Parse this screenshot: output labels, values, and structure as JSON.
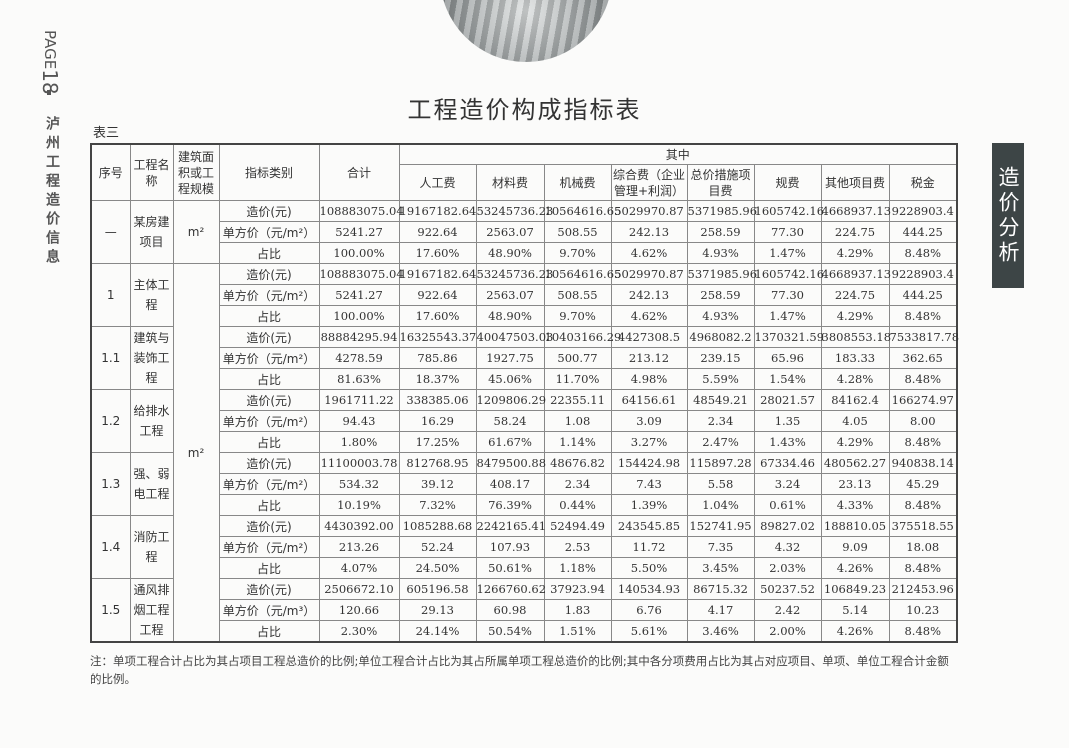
{
  "page_label": "PAGE",
  "page_number": "18",
  "magazine": "泸州工程造价信息",
  "section_tab": "造价分析",
  "title": "工程造价构成指标表",
  "table_label": "表三",
  "headers": {
    "seq": "序号",
    "name": "工程名称",
    "area": "建筑面积或工程规模",
    "kind": "指标类别",
    "total": "合计",
    "group": "其中",
    "sub": [
      "人工费",
      "材料费",
      "机械费",
      "综合费（企业管理+利润）",
      "总价措施项目费",
      "规费",
      "其他项目费",
      "税金"
    ]
  },
  "groups": [
    {
      "seq": "—",
      "name": "某房建项目",
      "area": "m²",
      "rows": [
        {
          "kind": "造价(元)",
          "values": [
            "108883075.04",
            "19167182.64",
            "53245736.23",
            "10564616.65",
            "5029970.87",
            "5371985.96",
            "1605742.16",
            "4668937.13",
            "9228903.4"
          ]
        },
        {
          "kind": "单方价（元/m²）",
          "values": [
            "5241.27",
            "922.64",
            "2563.07",
            "508.55",
            "242.13",
            "258.59",
            "77.30",
            "224.75",
            "444.25"
          ]
        },
        {
          "kind": "占比",
          "values": [
            "100.00%",
            "17.60%",
            "48.90%",
            "9.70%",
            "4.62%",
            "4.93%",
            "1.47%",
            "4.29%",
            "8.48%"
          ]
        }
      ]
    },
    {
      "seq": "1",
      "name": "主体工程",
      "rows": [
        {
          "kind": "造价(元)",
          "values": [
            "108883075.04",
            "19167182.64",
            "53245736.23",
            "10564616.65",
            "5029970.87",
            "5371985.96",
            "1605742.16",
            "4668937.13",
            "9228903.4"
          ]
        },
        {
          "kind": "单方价（元/m²）",
          "values": [
            "5241.27",
            "922.64",
            "2563.07",
            "508.55",
            "242.13",
            "258.59",
            "77.30",
            "224.75",
            "444.25"
          ]
        },
        {
          "kind": "占比",
          "values": [
            "100.00%",
            "17.60%",
            "48.90%",
            "9.70%",
            "4.62%",
            "4.93%",
            "1.47%",
            "4.29%",
            "8.48%"
          ]
        }
      ]
    },
    {
      "seq": "1.1",
      "name": "建筑与装饰工程",
      "rows": [
        {
          "kind": "造价(元)",
          "values": [
            "88884295.94",
            "16325543.37",
            "40047503.03",
            "10403166.29",
            "4427308.5",
            "4968082.2",
            "1370321.59",
            "3808553.18",
            "7533817.78"
          ]
        },
        {
          "kind": "单方价（元/m²）",
          "values": [
            "4278.59",
            "785.86",
            "1927.75",
            "500.77",
            "213.12",
            "239.15",
            "65.96",
            "183.33",
            "362.65"
          ]
        },
        {
          "kind": "占比",
          "values": [
            "81.63%",
            "18.37%",
            "45.06%",
            "11.70%",
            "4.98%",
            "5.59%",
            "1.54%",
            "4.28%",
            "8.48%"
          ]
        }
      ]
    },
    {
      "seq": "1.2",
      "name": "给排水工程",
      "rows": [
        {
          "kind": "造价(元)",
          "values": [
            "1961711.22",
            "338385.06",
            "1209806.29",
            "22355.11",
            "64156.61",
            "48549.21",
            "28021.57",
            "84162.4",
            "166274.97"
          ]
        },
        {
          "kind": "单方价（元/m²）",
          "values": [
            "94.43",
            "16.29",
            "58.24",
            "1.08",
            "3.09",
            "2.34",
            "1.35",
            "4.05",
            "8.00"
          ]
        },
        {
          "kind": "占比",
          "values": [
            "1.80%",
            "17.25%",
            "61.67%",
            "1.14%",
            "3.27%",
            "2.47%",
            "1.43%",
            "4.29%",
            "8.48%"
          ]
        }
      ]
    },
    {
      "seq": "1.3",
      "name": "强、弱电工程",
      "rows": [
        {
          "kind": "造价(元)",
          "values": [
            "11100003.78",
            "812768.95",
            "8479500.88",
            "48676.82",
            "154424.98",
            "115897.28",
            "67334.46",
            "480562.27",
            "940838.14"
          ]
        },
        {
          "kind": "单方价（元/m²）",
          "values": [
            "534.32",
            "39.12",
            "408.17",
            "2.34",
            "7.43",
            "5.58",
            "3.24",
            "23.13",
            "45.29"
          ]
        },
        {
          "kind": "占比",
          "values": [
            "10.19%",
            "7.32%",
            "76.39%",
            "0.44%",
            "1.39%",
            "1.04%",
            "0.61%",
            "4.33%",
            "8.48%"
          ]
        }
      ]
    },
    {
      "seq": "1.4",
      "name": "消防工程",
      "rows": [
        {
          "kind": "造价(元)",
          "values": [
            "4430392.00",
            "1085288.68",
            "2242165.41",
            "52494.49",
            "243545.85",
            "152741.95",
            "89827.02",
            "188810.05",
            "375518.55"
          ]
        },
        {
          "kind": "单方价（元/m²）",
          "values": [
            "213.26",
            "52.24",
            "107.93",
            "2.53",
            "11.72",
            "7.35",
            "4.32",
            "9.09",
            "18.08"
          ]
        },
        {
          "kind": "占比",
          "values": [
            "4.07%",
            "24.50%",
            "50.61%",
            "1.18%",
            "5.50%",
            "3.45%",
            "2.03%",
            "4.26%",
            "8.48%"
          ]
        }
      ]
    },
    {
      "seq": "1.5",
      "name": "通风排烟工程工程",
      "rows": [
        {
          "kind": "造价(元)",
          "values": [
            "2506672.10",
            "605196.58",
            "1266760.62",
            "37923.94",
            "140534.93",
            "86715.32",
            "50237.52",
            "106849.23",
            "212453.96"
          ]
        },
        {
          "kind": "单方价（元/m³）",
          "values": [
            "120.66",
            "29.13",
            "60.98",
            "1.83",
            "6.76",
            "4.17",
            "2.42",
            "5.14",
            "10.23"
          ]
        },
        {
          "kind": "占比",
          "values": [
            "2.30%",
            "24.14%",
            "50.54%",
            "1.51%",
            "5.61%",
            "3.46%",
            "2.00%",
            "4.26%",
            "8.48%"
          ]
        }
      ]
    }
  ],
  "shared_area": "m²",
  "note": "注：单项工程合计占比为其占项目工程总造价的比例;单位工程合计占比为其占所属单项工程总造价的比例;其中各分项费用占比为其占对应项目、单项、单位工程合计金额的比例。"
}
